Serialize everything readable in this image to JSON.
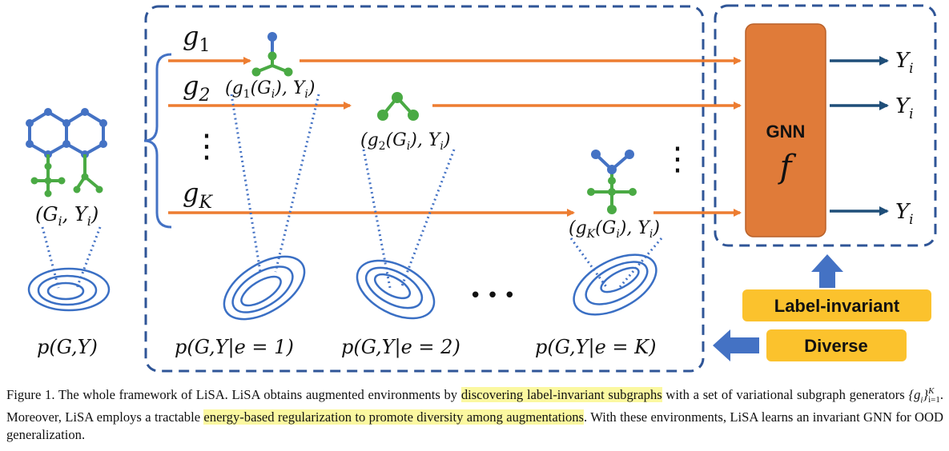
{
  "figure": {
    "generators": [
      "g",
      "g",
      "g"
    ],
    "generator_subscripts": [
      "1",
      "2",
      "K"
    ],
    "vdots": "⋮",
    "input_pair": "(G",
    "input_pair_sub": "i",
    "input_pair_end": ", Y",
    "input_pair_end_sub": "i",
    "input_pair_close": ")",
    "sub_pairs": [
      {
        "pre": "(g",
        "g_sub": "1",
        "mid": "(G",
        "mid_sub": "i",
        "end": "), Y",
        "end_sub": "i",
        "close": ")"
      },
      {
        "pre": "(g",
        "g_sub": "2",
        "mid": "(G",
        "mid_sub": "i",
        "end": "), Y",
        "end_sub": "i",
        "close": ")"
      },
      {
        "pre": "(g",
        "g_sub": "K",
        "mid": "(G",
        "mid_sub": "i",
        "end": "), Y",
        "end_sub": "i",
        "close": ")"
      }
    ],
    "dist_main": "p(G,Y)",
    "dist_envs": [
      "p(G,Y|e = 1)",
      "p(G,Y|e = 2)",
      "p(G,Y|e = K)"
    ],
    "ellipsis": "•••",
    "gnn_label": "GNN",
    "gnn_f": "f",
    "outputs": [
      {
        "main": "Y",
        "sub": "i"
      },
      {
        "main": "Y",
        "sub": "i"
      },
      {
        "main": "Y",
        "sub": "i"
      }
    ],
    "label_invariant": "Label-invariant",
    "diverse": "Diverse",
    "colors": {
      "dashed_border": "#2f5597",
      "arrow_orange": "#ed7d31",
      "gnn_box": "#e07b39",
      "graph_blue": "#4472c4",
      "graph_green": "#4aaa44",
      "tag_yellow": "#fbc22d",
      "contour_blue": "#3a6fc4"
    }
  },
  "caption": {
    "p1": "Figure 1. The whole framework of LiSA. LiSA obtains augmented environments by ",
    "hl1": "discovering label-invariant subgraphs",
    "p2": " with a set of variational subgraph generators ",
    "math_set": "{g",
    "math_set_sub": "i",
    "math_set_close": "}",
    "math_sup": "K",
    "math_sub": "i=1",
    "p3": ".  Moreover, LiSA employs a tractable ",
    "hl2": "energy-based regularization to promote diversity among augmentations",
    "p4": ". With these environments, LiSA learns an invariant GNN for OOD generalization."
  }
}
